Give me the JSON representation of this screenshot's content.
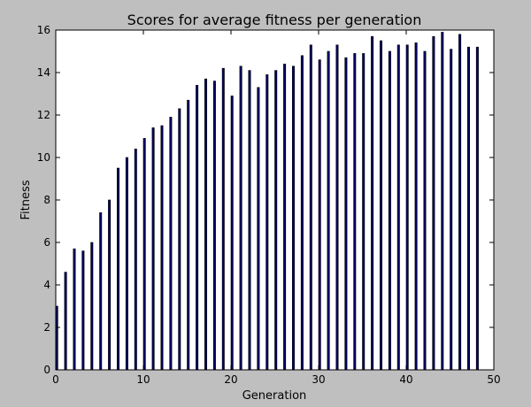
{
  "chart_data": {
    "type": "bar",
    "title": "Scores for average fitness per generation",
    "xlabel": "Generation",
    "ylabel": "Fitness",
    "xlim": [
      0,
      50
    ],
    "ylim": [
      0,
      16
    ],
    "xticks": [
      0,
      10,
      20,
      30,
      40,
      50
    ],
    "yticks": [
      0,
      2,
      4,
      6,
      8,
      10,
      12,
      14,
      16
    ],
    "grid": false,
    "legend": "none",
    "bar_color": "#000066",
    "background_color": "#bfbfbf",
    "plot_color": "#ffffff",
    "x": [
      0,
      1,
      2,
      3,
      4,
      5,
      6,
      7,
      8,
      9,
      10,
      11,
      12,
      13,
      14,
      15,
      16,
      17,
      18,
      19,
      20,
      21,
      22,
      23,
      24,
      25,
      26,
      27,
      28,
      29,
      30,
      31,
      32,
      33,
      34,
      35,
      36,
      37,
      38,
      39,
      40,
      41,
      42,
      43,
      44,
      45,
      46,
      47,
      48
    ],
    "values": [
      3.0,
      4.6,
      5.7,
      5.6,
      6.0,
      7.4,
      8.0,
      9.5,
      10.0,
      10.4,
      10.9,
      11.4,
      11.5,
      11.9,
      12.3,
      12.7,
      13.4,
      13.7,
      13.6,
      14.2,
      12.9,
      14.3,
      14.1,
      13.3,
      13.9,
      14.1,
      14.4,
      14.3,
      14.8,
      15.3,
      14.6,
      15.0,
      15.3,
      14.7,
      14.9,
      14.9,
      15.7,
      15.5,
      15.0,
      15.3,
      15.3,
      15.4,
      15.0,
      15.7,
      15.9,
      15.1,
      15.8,
      15.2,
      15.2
    ]
  }
}
